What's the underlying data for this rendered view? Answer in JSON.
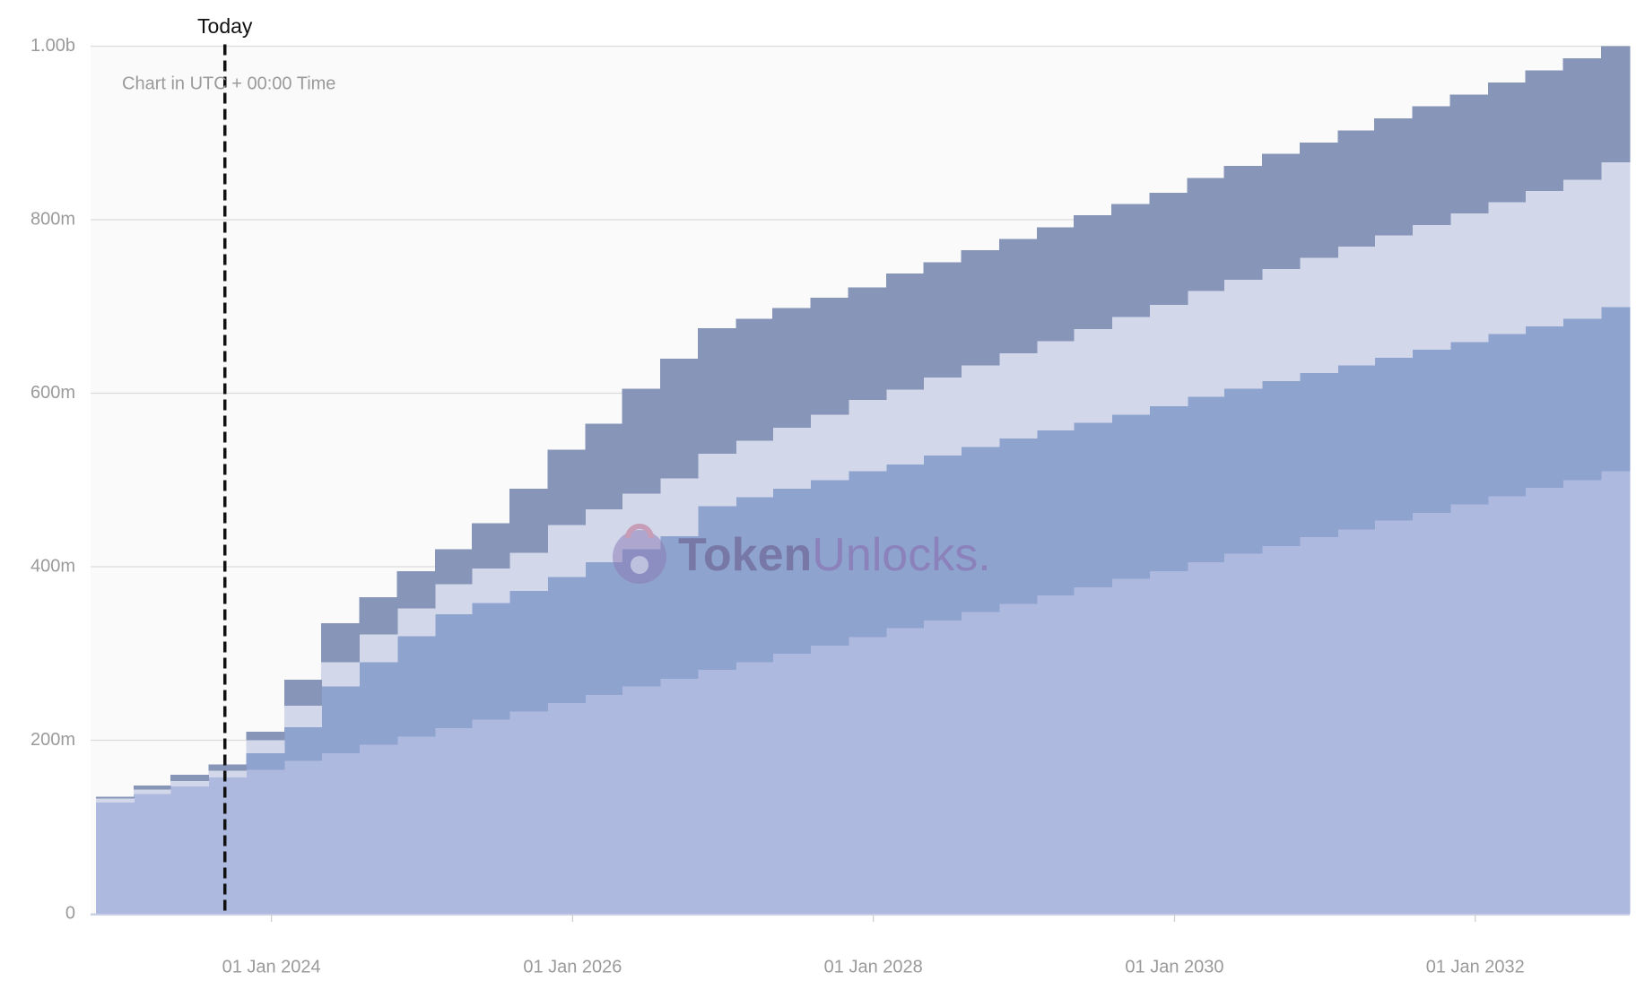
{
  "chart_data": {
    "type": "stacked-step-area",
    "annotation": "Chart in UTC + 00:00 Time",
    "watermark": [
      "Token",
      "Unlocks."
    ],
    "today": {
      "label": "Today",
      "date": "2023-09-10"
    },
    "x": [
      "2022-11-01",
      "2023-02-01",
      "2023-05-01",
      "2023-08-01",
      "2023-11-01",
      "2024-02-01",
      "2024-05-01",
      "2024-08-01",
      "2024-11-01",
      "2025-02-01",
      "2025-05-01",
      "2025-08-01",
      "2025-11-01",
      "2026-02-01",
      "2026-05-01",
      "2026-08-01",
      "2026-11-01",
      "2027-02-01",
      "2027-05-01",
      "2027-08-01",
      "2027-11-01",
      "2028-02-01",
      "2028-05-01",
      "2028-08-01",
      "2028-11-01",
      "2029-02-01",
      "2029-05-01",
      "2029-08-01",
      "2029-11-01",
      "2030-02-01",
      "2030-05-01",
      "2030-08-01",
      "2030-11-01",
      "2031-02-01",
      "2031-05-01",
      "2031-08-01",
      "2031-11-01",
      "2032-02-01",
      "2032-05-01",
      "2032-08-01",
      "2032-11-01"
    ],
    "xlim": [
      "2022-10-19",
      "2033-01-10"
    ],
    "xticks": [
      {
        "value": "2024-01-01",
        "label": "01 Jan 2024"
      },
      {
        "value": "2026-01-01",
        "label": "01 Jan 2026"
      },
      {
        "value": "2028-01-01",
        "label": "01 Jan 2028"
      },
      {
        "value": "2030-01-01",
        "label": "01 Jan 2030"
      },
      {
        "value": "2032-01-01",
        "label": "01 Jan 2032"
      }
    ],
    "ylim": [
      0,
      1000
    ],
    "yticks": [
      0,
      {
        "value": 200,
        "label": "200m"
      },
      {
        "value": 400,
        "label": "400m"
      },
      {
        "value": 600,
        "label": "600m"
      },
      {
        "value": 800,
        "label": "800m"
      },
      {
        "value": 1000,
        "label": "1.00b"
      }
    ],
    "grid": true,
    "series": [
      {
        "color": "#adb9de",
        "values": [
          128,
          138,
          147,
          157,
          166,
          176,
          185,
          195,
          204,
          214,
          224,
          233,
          243,
          252,
          262,
          271,
          281,
          290,
          300,
          309,
          319,
          329,
          338,
          348,
          357,
          367,
          376,
          386,
          395,
          405,
          415,
          424,
          434,
          443,
          453,
          462,
          472,
          481,
          491,
          500,
          510
        ]
      },
      {
        "color": "#8fa3cf",
        "values": [
          0,
          0,
          0,
          0,
          19,
          39,
          77,
          95,
          116,
          131,
          134,
          139,
          145,
          153,
          158,
          164,
          189,
          190,
          190,
          191,
          191,
          189,
          190,
          190,
          191,
          190,
          190,
          189,
          190,
          191,
          190,
          190,
          189,
          189,
          188,
          188,
          187,
          187,
          186,
          186,
          189
        ]
      },
      {
        "color": "#d3d7ea",
        "values": [
          5,
          5,
          6,
          8,
          15,
          25,
          28,
          32,
          32,
          35,
          40,
          44,
          60,
          61,
          64,
          67,
          60,
          65,
          70,
          75,
          82,
          86,
          90,
          94,
          98,
          103,
          108,
          113,
          117,
          122,
          126,
          129,
          133,
          137,
          141,
          144,
          148,
          152,
          156,
          160,
          167
        ]
      },
      {
        "color": "#8796b8",
        "values": [
          2,
          5,
          7,
          7,
          10,
          30,
          45,
          43,
          43,
          40,
          52,
          74,
          87,
          99,
          121,
          138,
          145,
          141,
          138,
          135,
          130,
          134,
          133,
          133,
          132,
          131,
          131,
          130,
          129,
          130,
          131,
          133,
          133,
          134,
          135,
          137,
          137,
          138,
          139,
          140,
          134
        ]
      }
    ]
  }
}
